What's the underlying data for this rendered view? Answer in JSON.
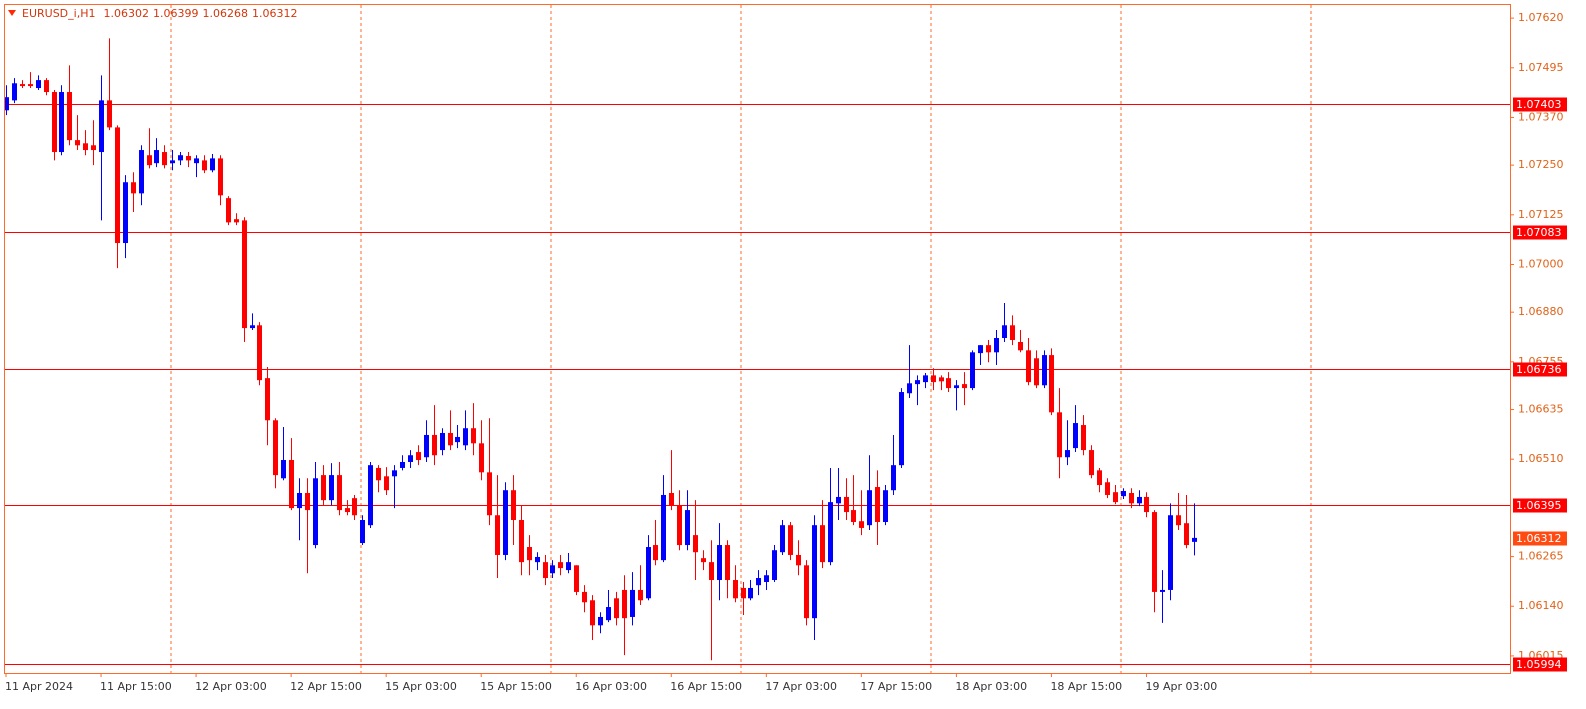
{
  "chart_data": {
    "type": "candlestick",
    "title": "EURUSD_i,H1",
    "categories": [
      "11 Apr 2024",
      null,
      null,
      null,
      null,
      null,
      null,
      null,
      null,
      null,
      null,
      null,
      "11 Apr 15:00",
      null,
      null,
      null,
      null,
      null,
      null,
      null,
      null,
      null,
      null,
      null,
      "12 Apr 03:00",
      null,
      null,
      null,
      null,
      null,
      null,
      null,
      null,
      null,
      null,
      null,
      "12 Apr 15:00",
      null,
      null,
      null,
      null,
      null,
      null,
      null,
      null,
      null,
      null,
      null,
      "15 Apr 03:00",
      null,
      null,
      null,
      null,
      null,
      null,
      null,
      null,
      null,
      null,
      null,
      "15 Apr 15:00",
      null,
      null,
      null,
      null,
      null,
      null,
      null,
      null,
      null,
      null,
      null,
      "16 Apr 03:00",
      null,
      null,
      null,
      null,
      null,
      null,
      null,
      null,
      null,
      null,
      null,
      "16 Apr 15:00",
      null,
      null,
      null,
      null,
      null,
      null,
      null,
      null,
      null,
      null,
      null,
      "17 Apr 03:00",
      null,
      null,
      null,
      null,
      null,
      null,
      null,
      null,
      null,
      null,
      null,
      "17 Apr 15:00",
      null,
      null,
      null,
      null,
      null,
      null,
      null,
      null,
      null,
      null,
      null,
      "18 Apr 03:00",
      null,
      null,
      null,
      null,
      null,
      null,
      null,
      null,
      null,
      null,
      null,
      "18 Apr 15:00",
      null,
      null,
      null,
      null,
      null,
      null,
      null,
      null,
      null,
      null,
      null,
      "19 Apr 03:00",
      null,
      null,
      null,
      null,
      null,
      null
    ],
    "open": [
      1.07388,
      1.07413,
      1.07454,
      1.07454,
      1.07444,
      1.07464,
      1.07434,
      1.07283,
      1.07434,
      1.07313,
      1.07305,
      1.073,
      1.07283,
      1.07413,
      1.07345,
      1.07054,
      1.07207,
      1.07179,
      1.07275,
      1.07255,
      1.07283,
      1.07255,
      1.07262,
      1.07273,
      1.07255,
      1.07262,
      1.07237,
      1.07267,
      1.07167,
      1.07114,
      1.07111,
      1.0684,
      1.06847,
      1.06714,
      1.06608,
      1.06462,
      1.06508,
      1.06387,
      1.06425,
      1.06294,
      1.0647,
      1.06407,
      1.0647,
      1.06387,
      1.06412,
      1.06299,
      1.06344,
      1.06488,
      1.06467,
      1.06467,
      1.06488,
      1.06503,
      1.06528,
      1.06515,
      1.06571,
      1.06533,
      1.06576,
      1.06553,
      1.06545,
      1.06588,
      1.0655,
      1.06477,
      1.06369,
      1.06269,
      1.06432,
      1.06357,
      1.06289,
      1.06251,
      1.06251,
      1.06223,
      1.06251,
      1.06231,
      1.06243,
      1.06176,
      1.06155,
      1.06092,
      1.06105,
      1.0616,
      1.06181,
      1.06113,
      1.06181,
      1.0616,
      1.06294,
      1.06256,
      1.06425,
      1.06394,
      1.06294,
      1.06319,
      1.06261,
      1.06251,
      1.06206,
      1.06294,
      1.06206,
      1.06186,
      1.0616,
      1.06193,
      1.06201,
      1.06206,
      1.06276,
      1.06344,
      1.06269,
      1.06243,
      1.0611,
      1.06344,
      1.06251,
      1.06399,
      1.06415,
      1.06382,
      1.06354,
      1.06344,
      1.0644,
      1.06352,
      1.06432,
      1.06495,
      1.06676,
      1.06699,
      1.06704,
      1.06721,
      1.06716,
      1.06714,
      1.06689,
      1.06699,
      1.06689,
      1.06777,
      1.06797,
      1.06779,
      1.06815,
      1.06847,
      1.06805,
      1.06784,
      1.06764,
      1.06696,
      1.06772,
      1.06628,
      1.06515,
      1.06538,
      1.06596,
      1.06533,
      1.06482,
      1.06452,
      1.06427,
      1.06417,
      1.06425,
      1.06399,
      1.06415,
      1.06377,
      1.06176,
      1.06181,
      1.06369,
      1.06349,
      1.06302
    ],
    "high": [
      1.07451,
      1.07469,
      1.07464,
      1.07484,
      1.07476,
      1.07469,
      1.07439,
      1.07451,
      1.07501,
      1.07376,
      1.07338,
      1.07363,
      1.07476,
      1.07569,
      1.0735,
      1.07225,
      1.07232,
      1.073,
      1.07343,
      1.07318,
      1.073,
      1.07288,
      1.07283,
      1.07283,
      1.07275,
      1.07275,
      1.07278,
      1.07275,
      1.07172,
      1.07129,
      1.07119,
      1.06877,
      1.06855,
      1.06742,
      1.06613,
      1.06591,
      1.06563,
      1.06462,
      1.06462,
      1.06503,
      1.06495,
      1.065,
      1.06503,
      1.06407,
      1.0642,
      1.06369,
      1.06503,
      1.06495,
      1.0649,
      1.06495,
      1.0652,
      1.06533,
      1.06545,
      1.06608,
      1.06646,
      1.06588,
      1.06633,
      1.06596,
      1.06633,
      1.06651,
      1.06608,
      1.06613,
      1.0647,
      1.06452,
      1.0647,
      1.06394,
      1.06319,
      1.06276,
      1.06269,
      1.06256,
      1.06269,
      1.06274,
      1.06243,
      1.06193,
      1.06168,
      1.06125,
      1.06181,
      1.06176,
      1.06218,
      1.06226,
      1.06243,
      1.06319,
      1.06357,
      1.0647,
      1.06533,
      1.06432,
      1.06432,
      1.06407,
      1.06281,
      1.06306,
      1.06349,
      1.06306,
      1.06243,
      1.06201,
      1.06206,
      1.06231,
      1.06231,
      1.06294,
      1.06357,
      1.06352,
      1.06306,
      1.06256,
      1.06369,
      1.06407,
      1.06488,
      1.06488,
      1.06462,
      1.0647,
      1.06432,
      1.0652,
      1.06482,
      1.06445,
      1.06571,
      1.06689,
      1.06797,
      1.06721,
      1.06727,
      1.06739,
      1.06721,
      1.06729,
      1.06709,
      1.06729,
      1.06784,
      1.06797,
      1.0681,
      1.06835,
      1.06903,
      1.06872,
      1.06835,
      1.06815,
      1.06784,
      1.06784,
      1.06789,
      1.06689,
      1.06608,
      1.06646,
      1.06621,
      1.06545,
      1.06488,
      1.06462,
      1.06445,
      1.06437,
      1.06437,
      1.06432,
      1.06427,
      1.06382,
      1.06231,
      1.06399,
      1.06425,
      1.0642,
      1.06399
    ],
    "low": [
      1.07376,
      1.07406,
      1.07444,
      1.07444,
      1.07439,
      1.07426,
      1.07262,
      1.07275,
      1.073,
      1.07288,
      1.07275,
      1.0725,
      1.07111,
      1.07338,
      1.06991,
      1.07016,
      1.07132,
      1.07149,
      1.07242,
      1.07245,
      1.07242,
      1.07237,
      1.0725,
      1.07245,
      1.0722,
      1.0723,
      1.07232,
      1.07149,
      1.07099,
      1.07099,
      1.06805,
      1.06835,
      1.06696,
      1.06545,
      1.06437,
      1.06457,
      1.06382,
      1.06306,
      1.06223,
      1.06286,
      1.06394,
      1.06394,
      1.06369,
      1.06369,
      1.06357,
      1.06294,
      1.06337,
      1.06427,
      1.0642,
      1.06387,
      1.06482,
      1.06488,
      1.06495,
      1.06503,
      1.06495,
      1.0652,
      1.06533,
      1.06538,
      1.06533,
      1.0652,
      1.06457,
      1.06344,
      1.06211,
      1.06256,
      1.06294,
      1.06218,
      1.06218,
      1.06231,
      1.06193,
      1.06211,
      1.06218,
      1.06223,
      1.06168,
      1.06125,
      1.06055,
      1.06072,
      1.061,
      1.06092,
      1.06017,
      1.06092,
      1.06143,
      1.06155,
      1.06243,
      1.06251,
      1.06382,
      1.06281,
      1.06281,
      1.06206,
      1.06231,
      1.06004,
      1.06155,
      1.0616,
      1.0615,
      1.06118,
      1.06155,
      1.06168,
      1.06181,
      1.06201,
      1.06269,
      1.06256,
      1.06218,
      1.06092,
      1.06055,
      1.06236,
      1.06243,
      1.06357,
      1.06357,
      1.06344,
      1.06319,
      1.06332,
      1.06294,
      1.06344,
      1.0642,
      1.06488,
      1.06664,
      1.06646,
      1.06689,
      1.06684,
      1.06684,
      1.06679,
      1.06633,
      1.06646,
      1.06684,
      1.06747,
      1.06754,
      1.06747,
      1.06805,
      1.06797,
      1.06779,
      1.06696,
      1.06689,
      1.06689,
      1.06621,
      1.06462,
      1.06495,
      1.06528,
      1.0652,
      1.06462,
      1.06427,
      1.06412,
      1.06397,
      1.0641,
      1.06387,
      1.06392,
      1.06364,
      1.06125,
      1.06098,
      1.06155,
      1.06332,
      1.06286,
      1.06268
    ],
    "close": [
      1.07421,
      1.07456,
      1.07449,
      1.07449,
      1.07464,
      1.07434,
      1.07283,
      1.07434,
      1.07313,
      1.073,
      1.07288,
      1.07288,
      1.07413,
      1.07345,
      1.07054,
      1.07207,
      1.07179,
      1.07288,
      1.0725,
      1.07288,
      1.0725,
      1.07262,
      1.07275,
      1.07262,
      1.07267,
      1.07237,
      1.07267,
      1.07174,
      1.07106,
      1.07106,
      1.0684,
      1.06847,
      1.06709,
      1.06608,
      1.0647,
      1.06508,
      1.06387,
      1.06425,
      1.06382,
      1.06462,
      1.06407,
      1.0647,
      1.06382,
      1.06377,
      1.06369,
      1.06357,
      1.06495,
      1.06457,
      1.06432,
      1.06482,
      1.06503,
      1.0652,
      1.06508,
      1.06571,
      1.0652,
      1.06576,
      1.06545,
      1.06566,
      1.06588,
      1.0655,
      1.06477,
      1.06369,
      1.06269,
      1.06432,
      1.06357,
      1.06251,
      1.06256,
      1.06264,
      1.06211,
      1.06243,
      1.06236,
      1.06251,
      1.06176,
      1.0615,
      1.06092,
      1.06113,
      1.06138,
      1.0611,
      1.0611,
      1.06181,
      1.06155,
      1.06289,
      1.06256,
      1.0642,
      1.06394,
      1.06294,
      1.06382,
      1.06276,
      1.06251,
      1.06206,
      1.06294,
      1.06206,
      1.0616,
      1.0616,
      1.06186,
      1.06211,
      1.06218,
      1.06281,
      1.06344,
      1.06269,
      1.06243,
      1.0611,
      1.06344,
      1.06251,
      1.06402,
      1.06415,
      1.06377,
      1.06352,
      1.06337,
      1.06432,
      1.06352,
      1.06432,
      1.06495,
      1.06679,
      1.06701,
      1.06709,
      1.06721,
      1.06704,
      1.06706,
      1.06689,
      1.06696,
      1.06689,
      1.06779,
      1.06797,
      1.06779,
      1.06815,
      1.06847,
      1.0681,
      1.06784,
      1.06704,
      1.06696,
      1.06772,
      1.06628,
      1.06515,
      1.06533,
      1.06601,
      1.06533,
      1.0647,
      1.06445,
      1.0642,
      1.06402,
      1.0643,
      1.06399,
      1.06415,
      1.06377,
      1.06176,
      1.06181,
      1.06369,
      1.06344,
      1.06294,
      1.06312
    ],
    "up_color": "#0000ff",
    "down_color": "#ff0000",
    "levels": [
      1.07403,
      1.07083,
      1.06736,
      1.06395,
      1.05994
    ],
    "level_color": "#ff0000",
    "price_color": "#ff4a12",
    "ylim": [
      1.05972,
      1.07653
    ],
    "yticks": [
      {
        "value": 1.0762,
        "label": "1.07620"
      },
      1.07495,
      {
        "value": 1.0737,
        "label": "1.07370"
      },
      {
        "value": 1.0725,
        "label": "1.07250"
      },
      1.07125,
      {
        "value": 1.07,
        "label": "1.07000"
      },
      {
        "value": 1.0688,
        "label": "1.06880"
      },
      1.06755,
      1.06635,
      {
        "value": 1.0651,
        "label": "1.06510"
      },
      1.06265,
      {
        "value": 1.0614,
        "label": "1.06140"
      },
      1.06015
    ]
  }
}
